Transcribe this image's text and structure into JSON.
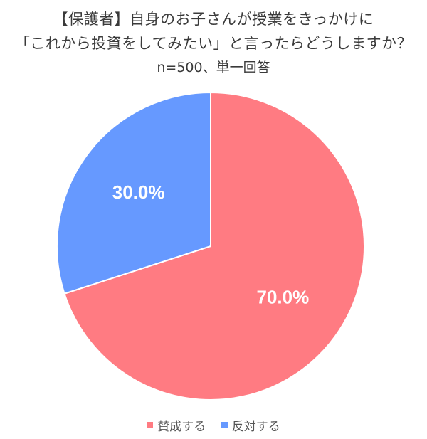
{
  "title_lines": [
    "【保護者】自身のお子さんが授業をきっかけに",
    "「これから投資をしてみたい」と言ったらどうしますか？"
  ],
  "subtitle": "n=500、単一回答",
  "chart_data": {
    "type": "pie",
    "title": "【保護者】自身のお子さんが授業をきっかけに「これから投資をしてみたい」と言ったらどうしますか？",
    "subtitle": "n=500、単一回答",
    "slices": [
      {
        "label": "賛成する",
        "value": 70.0,
        "display": "70.0%",
        "color": "#ff7b82"
      },
      {
        "label": "反対する",
        "value": 30.0,
        "display": "30.0%",
        "color": "#6699ff"
      }
    ],
    "legend_position": "bottom"
  }
}
